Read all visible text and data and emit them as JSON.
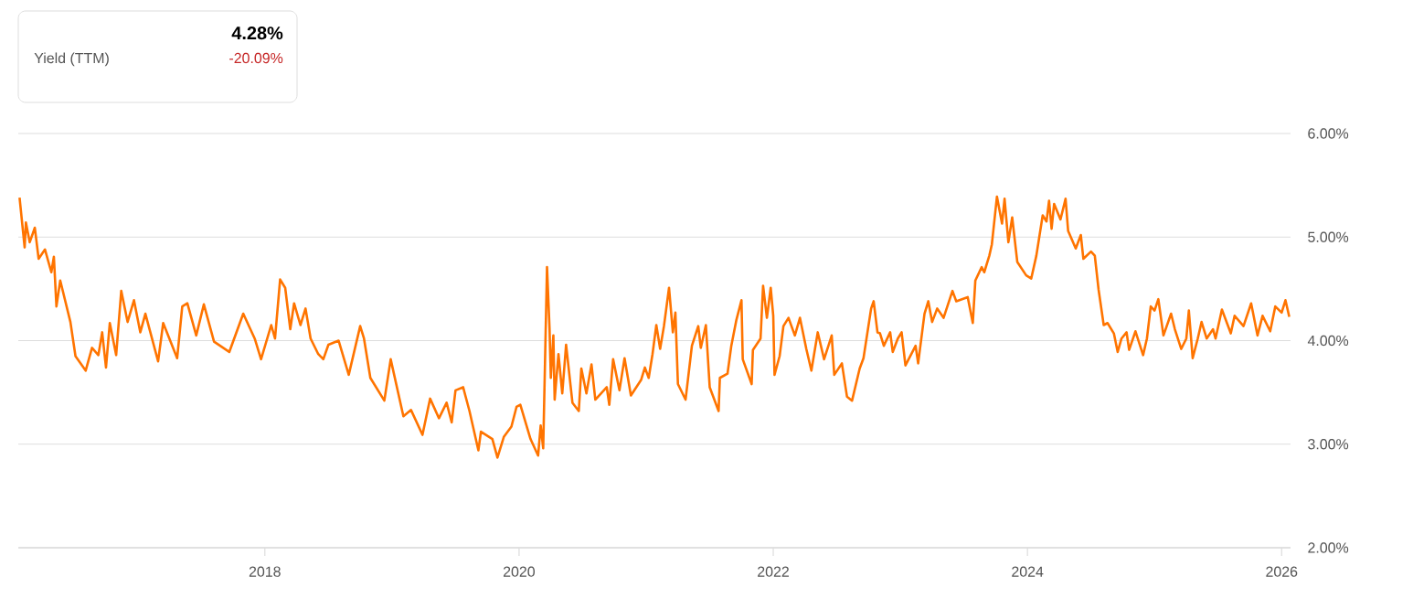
{
  "chart_data": {
    "type": "line",
    "color": "#ff7400",
    "annotations": [
      "Yield (TTM)",
      "4.28%",
      "-20.09%"
    ],
    "x": [
      2016.07,
      2016.11,
      2016.12,
      2016.15,
      2016.19,
      2016.22,
      2016.27,
      2016.32,
      2016.34,
      2016.36,
      2016.39,
      2016.47,
      2016.51,
      2016.59,
      2016.64,
      2016.69,
      2016.72,
      2016.75,
      2016.78,
      2016.83,
      2016.87,
      2016.92,
      2016.97,
      2017.02,
      2017.06,
      2017.16,
      2017.2,
      2017.31,
      2017.35,
      2017.39,
      2017.46,
      2017.52,
      2017.6,
      2017.72,
      2017.83,
      2017.92,
      2017.97,
      2018.05,
      2018.08,
      2018.12,
      2018.16,
      2018.2,
      2018.23,
      2018.28,
      2018.32,
      2018.36,
      2018.42,
      2018.46,
      2018.5,
      2018.58,
      2018.66,
      2018.75,
      2018.78,
      2018.83,
      2018.94,
      2018.99,
      2019.09,
      2019.15,
      2019.24,
      2019.3,
      2019.37,
      2019.43,
      2019.47,
      2019.5,
      2019.56,
      2019.61,
      2019.68,
      2019.7,
      2019.79,
      2019.83,
      2019.88,
      2019.94,
      2019.98,
      2020.01,
      2020.09,
      2020.15,
      2020.17,
      2020.19,
      2020.22,
      2020.24,
      2020.25,
      2020.27,
      2020.28,
      2020.31,
      2020.34,
      2020.37,
      2020.42,
      2020.47,
      2020.49,
      2020.53,
      2020.57,
      2020.6,
      2020.69,
      2020.71,
      2020.74,
      2020.79,
      2020.83,
      2020.88,
      2020.96,
      2020.99,
      2021.02,
      2021.05,
      2021.08,
      2021.11,
      2021.14,
      2021.18,
      2021.21,
      2021.23,
      2021.25,
      2021.31,
      2021.36,
      2021.41,
      2021.43,
      2021.47,
      2021.5,
      2021.57,
      2021.58,
      2021.64,
      2021.67,
      2021.71,
      2021.75,
      2021.76,
      2021.83,
      2021.84,
      2021.9,
      2021.92,
      2021.95,
      2021.98,
      2022.0,
      2022.01,
      2022.05,
      2022.08,
      2022.12,
      2022.17,
      2022.21,
      2022.26,
      2022.3,
      2022.35,
      2022.4,
      2022.46,
      2022.48,
      2022.54,
      2022.58,
      2022.62,
      2022.68,
      2022.71,
      2022.77,
      2022.79,
      2022.82,
      2022.84,
      2022.87,
      2022.92,
      2022.94,
      2022.98,
      2023.01,
      2023.04,
      2023.12,
      2023.14,
      2023.19,
      2023.22,
      2023.25,
      2023.29,
      2023.34,
      2023.41,
      2023.44,
      2023.53,
      2023.57,
      2023.59,
      2023.64,
      2023.66,
      2023.7,
      2023.72,
      2023.76,
      2023.8,
      2023.82,
      2023.85,
      2023.88,
      2023.92,
      2023.99,
      2024.03,
      2024.07,
      2024.12,
      2024.15,
      2024.17,
      2024.19,
      2024.21,
      2024.26,
      2024.3,
      2024.32,
      2024.38,
      2024.42,
      2024.44,
      2024.5,
      2024.53,
      2024.56,
      2024.6,
      2024.63,
      2024.68,
      2024.71,
      2024.74,
      2024.78,
      2024.8,
      2024.85,
      2024.91,
      2024.94,
      2024.97,
      2025.0,
      2025.03,
      2025.07,
      2025.13,
      2025.16,
      2025.21,
      2025.25,
      2025.27,
      2025.3,
      2025.34,
      2025.37,
      2025.41,
      2025.46,
      2025.48,
      2025.53,
      2025.6,
      2025.63,
      2025.7,
      2025.76,
      2025.81,
      2025.85,
      2025.91,
      2025.95,
      2026.0,
      2026.03,
      2026.06
    ],
    "values": [
      5.38,
      4.9,
      5.14,
      4.95,
      5.09,
      4.79,
      4.88,
      4.66,
      4.81,
      4.33,
      4.58,
      4.18,
      3.85,
      3.71,
      3.93,
      3.86,
      4.08,
      3.74,
      4.17,
      3.86,
      4.48,
      4.18,
      4.39,
      4.08,
      4.26,
      3.8,
      4.17,
      3.83,
      4.33,
      4.36,
      4.05,
      4.35,
      3.99,
      3.89,
      4.26,
      4.02,
      3.82,
      4.15,
      4.02,
      4.59,
      4.51,
      4.11,
      4.36,
      4.15,
      4.31,
      4.02,
      3.87,
      3.82,
      3.96,
      4.0,
      3.67,
      4.14,
      4.02,
      3.64,
      3.42,
      3.82,
      3.27,
      3.33,
      3.09,
      3.44,
      3.25,
      3.4,
      3.21,
      3.52,
      3.55,
      3.32,
      2.94,
      3.12,
      3.05,
      2.87,
      3.07,
      3.17,
      3.36,
      3.38,
      3.05,
      2.89,
      3.18,
      2.96,
      4.71,
      4.11,
      3.64,
      4.05,
      3.43,
      3.87,
      3.49,
      3.96,
      3.4,
      3.32,
      3.73,
      3.49,
      3.77,
      3.43,
      3.55,
      3.38,
      3.82,
      3.52,
      3.83,
      3.47,
      3.62,
      3.74,
      3.64,
      3.87,
      4.15,
      3.92,
      4.14,
      4.51,
      4.08,
      4.27,
      3.58,
      3.43,
      3.95,
      4.14,
      3.93,
      4.15,
      3.55,
      3.32,
      3.64,
      3.68,
      3.95,
      4.2,
      4.39,
      3.82,
      3.58,
      3.91,
      4.02,
      4.53,
      4.22,
      4.51,
      4.24,
      3.67,
      3.85,
      4.14,
      4.22,
      4.05,
      4.22,
      3.92,
      3.71,
      4.08,
      3.82,
      4.05,
      3.67,
      3.78,
      3.46,
      3.42,
      3.73,
      3.83,
      4.31,
      4.38,
      4.08,
      4.07,
      3.95,
      4.08,
      3.89,
      4.02,
      4.08,
      3.76,
      3.95,
      3.78,
      4.26,
      4.38,
      4.18,
      4.31,
      4.22,
      4.48,
      4.38,
      4.42,
      4.17,
      4.58,
      4.71,
      4.66,
      4.82,
      4.93,
      5.39,
      5.13,
      5.37,
      4.95,
      5.19,
      4.76,
      4.63,
      4.6,
      4.82,
      5.21,
      5.15,
      5.35,
      5.08,
      5.32,
      5.17,
      5.37,
      5.06,
      4.89,
      5.02,
      4.79,
      4.86,
      4.82,
      4.49,
      4.15,
      4.17,
      4.07,
      3.89,
      4.02,
      4.08,
      3.91,
      4.09,
      3.86,
      4.02,
      4.33,
      4.29,
      4.4,
      4.05,
      4.26,
      4.11,
      3.92,
      4.02,
      4.29,
      3.83,
      4.02,
      4.18,
      4.02,
      4.11,
      4.02,
      4.3,
      4.07,
      4.24,
      4.14,
      4.36,
      4.05,
      4.24,
      4.09,
      4.33,
      4.27,
      4.39,
      4.23
    ],
    "xlim": [
      2016.06,
      2026.07
    ],
    "ylim": [
      2,
      6
    ],
    "xticks": [
      2018,
      2020,
      2022,
      2024,
      2026
    ],
    "yticks": [
      {
        "value": 2,
        "label": "2.00%"
      },
      {
        "value": 3,
        "label": "3.00%"
      },
      {
        "value": 4,
        "label": "4.00%"
      },
      {
        "value": 5,
        "label": "5.00%"
      },
      {
        "value": 6,
        "label": "6.00%"
      }
    ],
    "grid": "y"
  }
}
